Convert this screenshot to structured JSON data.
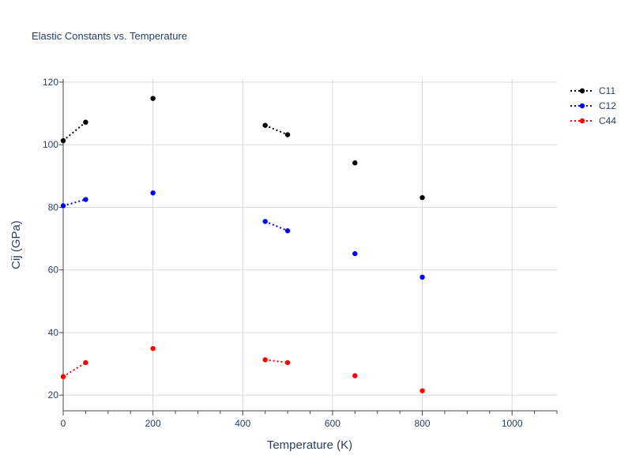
{
  "chart_data": {
    "type": "scatter",
    "title": "Elastic Constants vs. Temperature",
    "xlabel": "Temperature (K)",
    "ylabel": "Cij (GPa)",
    "xlim": [
      0,
      1100
    ],
    "ylim": [
      15,
      121
    ],
    "xticks": [
      0,
      200,
      400,
      600,
      800,
      1000
    ],
    "yticks": [
      20,
      40,
      60,
      80,
      100,
      120
    ],
    "grid": true,
    "legend_position": "top-right",
    "line_style": "dotted",
    "series": [
      {
        "name": "C11",
        "color": "#000000",
        "points": [
          [
            0,
            101.3
          ],
          [
            50,
            107.2
          ],
          [
            200,
            114.8
          ],
          [
            450,
            106.2
          ],
          [
            500,
            103.2
          ],
          [
            650,
            94.2
          ],
          [
            800,
            83.1
          ]
        ],
        "segments": [
          [
            0,
            1
          ],
          [
            3,
            4
          ]
        ]
      },
      {
        "name": "C12",
        "color": "#0000ff",
        "points": [
          [
            0,
            80.5
          ],
          [
            50,
            82.5
          ],
          [
            200,
            84.6
          ],
          [
            450,
            75.5
          ],
          [
            500,
            72.5
          ],
          [
            650,
            65.2
          ],
          [
            800,
            57.7
          ]
        ],
        "segments": [
          [
            0,
            1
          ],
          [
            3,
            4
          ]
        ]
      },
      {
        "name": "C44",
        "color": "#ff0000",
        "points": [
          [
            0,
            25.9
          ],
          [
            50,
            30.4
          ],
          [
            200,
            34.9
          ],
          [
            450,
            31.3
          ],
          [
            500,
            30.4
          ],
          [
            650,
            26.2
          ],
          [
            800,
            21.4
          ]
        ],
        "segments": [
          [
            0,
            1
          ],
          [
            3,
            4
          ]
        ]
      }
    ]
  }
}
